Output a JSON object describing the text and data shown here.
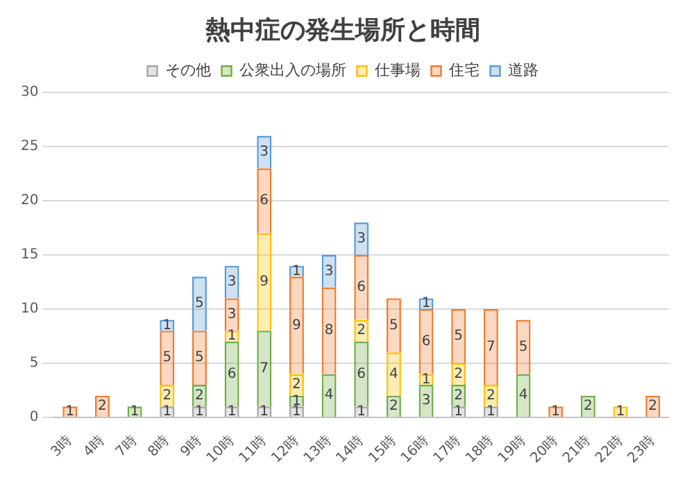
{
  "chart_data": {
    "type": "bar",
    "title": "熱中症の発生場所と時間",
    "stacked": true,
    "data_labels": true,
    "grid": "y",
    "legend": "top",
    "categories": [
      "3時",
      "4時",
      "7時",
      "8時",
      "9時",
      "10時",
      "11時",
      "12時",
      "13時",
      "14時",
      "15時",
      "16時",
      "17時",
      "18時",
      "19時",
      "20時",
      "21時",
      "22時",
      "23時"
    ],
    "ylim": [
      0,
      30
    ],
    "yticks": [
      0,
      5,
      10,
      15,
      20,
      25,
      30
    ],
    "series": [
      {
        "name": "その他",
        "color": "#a5a5a5",
        "values": [
          null,
          null,
          null,
          1,
          1,
          1,
          1,
          1,
          null,
          1,
          null,
          null,
          1,
          1,
          null,
          null,
          null,
          null,
          null
        ]
      },
      {
        "name": "公衆出入の場所",
        "color": "#70ad47",
        "values": [
          null,
          null,
          1,
          null,
          2,
          6,
          7,
          1,
          4,
          6,
          2,
          3,
          2,
          null,
          4,
          null,
          2,
          null,
          null
        ]
      },
      {
        "name": "仕事場",
        "color": "#ffc000",
        "values": [
          null,
          null,
          null,
          2,
          null,
          1,
          9,
          2,
          null,
          2,
          4,
          1,
          2,
          2,
          null,
          null,
          null,
          1,
          null
        ]
      },
      {
        "name": "住宅",
        "color": "#ed7d31",
        "values": [
          1,
          2,
          null,
          5,
          5,
          3,
          6,
          9,
          8,
          6,
          5,
          6,
          5,
          7,
          5,
          1,
          null,
          null,
          2
        ]
      },
      {
        "name": "道路",
        "color": "#5b9bd5",
        "values": [
          null,
          null,
          null,
          1,
          5,
          3,
          3,
          1,
          3,
          3,
          null,
          1,
          null,
          null,
          null,
          null,
          null,
          null,
          null
        ]
      }
    ]
  }
}
